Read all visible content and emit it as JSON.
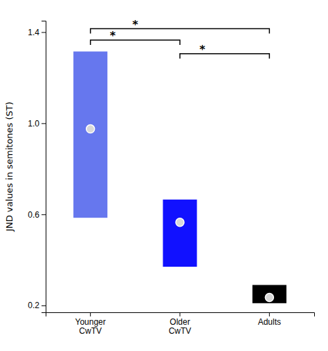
{
  "chart_data": {
    "type": "bar",
    "categories": [
      "Younger\nCwTV",
      "Older\nCwTV",
      "Adults"
    ],
    "values": [
      0.975,
      0.565,
      0.235
    ],
    "ci_low": [
      0.585,
      0.37,
      0.21
    ],
    "ci_high": [
      1.315,
      0.665,
      0.29
    ],
    "colors": [
      "#6677ee",
      "#1111ff",
      "#000000"
    ],
    "y_label": "JND values in semitones (ST)",
    "ylim": [
      0.17,
      1.45
    ],
    "yticks": [
      0.2,
      0.6,
      {
        "value": 1.0,
        "label": "1.0"
      },
      1.4
    ],
    "grid": false,
    "annotations": [
      {
        "from": "Younger\nCwTV",
        "to": "Older\nCwTV",
        "y": 1.365,
        "label": "*"
      },
      {
        "from": "Younger\nCwTV",
        "to": "Adults",
        "y": 1.415,
        "label": "*"
      },
      {
        "from": "Older\nCwTV",
        "to": "Adults",
        "y": 1.305,
        "label": "*"
      }
    ]
  }
}
